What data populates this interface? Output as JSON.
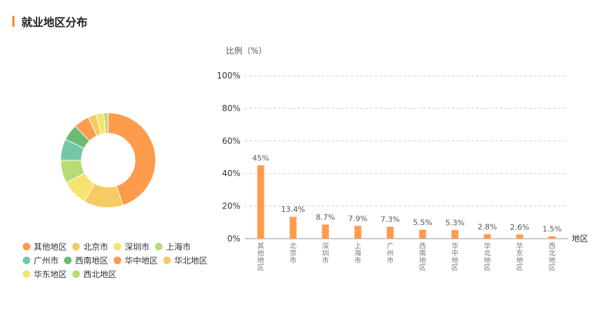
{
  "page": {
    "title": "就业地区分布"
  },
  "chart_data": [
    {
      "type": "pie",
      "variant": "donut",
      "categories": [
        "其他地区",
        "北京市",
        "深圳市",
        "上海市",
        "广州市",
        "西南地区",
        "华中地区",
        "华北地区",
        "华东地区",
        "西北地区"
      ],
      "values": [
        45,
        13.4,
        8.7,
        7.9,
        7.3,
        5.5,
        5.3,
        2.8,
        2.6,
        1.5
      ],
      "colors": [
        "#fe9b4c",
        "#f7cb63",
        "#f7e36d",
        "#b8dc75",
        "#74c6a7",
        "#6cbb75",
        "#fe9b4c",
        "#f7cb63",
        "#f7e36d",
        "#b8dc75"
      ],
      "legend": "bottom"
    },
    {
      "type": "bar",
      "categories": [
        "其他地区",
        "北京市",
        "深圳市",
        "上海市",
        "广州市",
        "西南地区",
        "华中地区",
        "华北地区",
        "华东地区",
        "西北地区"
      ],
      "values": [
        45,
        13.4,
        8.7,
        7.9,
        7.3,
        5.5,
        5.3,
        2.8,
        2.6,
        1.5
      ],
      "value_labels": [
        "45%",
        "13.4%",
        "8.7%",
        "7.9%",
        "7.3%",
        "5.5%",
        "5.3%",
        "2.8%",
        "2.6%",
        "1.5%"
      ],
      "ylabel": "比例（%）",
      "xlabel": "地区",
      "ylim": [
        0,
        100
      ],
      "yticks": [
        "0%",
        "20%",
        "40%",
        "60%",
        "80%",
        "100%"
      ],
      "grid": true,
      "bar_color": "#fe9b4c"
    }
  ]
}
